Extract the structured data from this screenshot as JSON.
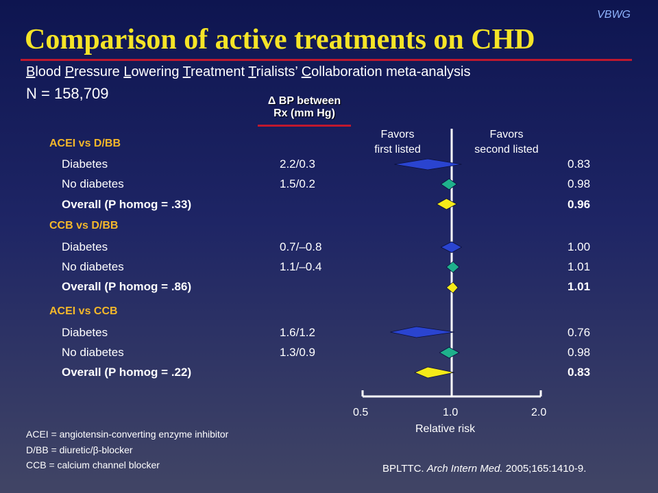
{
  "brand": "VBWG",
  "title": "Comparison of active treatments on CHD",
  "subtitle": [
    {
      "initial": "B",
      "rest": "lood "
    },
    {
      "initial": "P",
      "rest": "ressure "
    },
    {
      "initial": "L",
      "rest": "owering "
    },
    {
      "initial": "T",
      "rest": "reatment "
    },
    {
      "initial": "T",
      "rest": "rialists’ "
    },
    {
      "initial": "C",
      "rest": "ollaboration meta-analysis"
    }
  ],
  "sample_size": "N = 158,709",
  "column_header": {
    "line1": "Δ BP between",
    "line2": "Rx (mm Hg)"
  },
  "favors_left": {
    "line1": "Favors",
    "line2": "first listed"
  },
  "favors_right": {
    "line1": "Favors",
    "line2": "second listed"
  },
  "colors": {
    "diabetes": "#2a44d0",
    "no_diabetes": "#1fb08c",
    "overall": "#f5ea18",
    "group_label": "#f5b82a",
    "title": "#f5e427"
  },
  "chart_data": {
    "type": "forest",
    "xlabel": "Relative risk",
    "x_ticks": [
      "0.5",
      "1.0",
      "2.0"
    ],
    "x_tick_values": [
      0.5,
      1.0,
      2.0
    ],
    "reference_line": 1.0,
    "log_scale": true,
    "groups": [
      {
        "label": "ACEI vs D/BB",
        "rows": [
          {
            "label": "Diabetes",
            "bp": "2.2/0.3",
            "rr": "0.83",
            "value": 0.83,
            "ci": [
              0.64,
              1.08
            ],
            "kind": "diabetes",
            "bold": false
          },
          {
            "label": "No diabetes",
            "bp": "1.5/0.2",
            "rr": "0.98",
            "value": 0.98,
            "ci": [
              0.92,
              1.04
            ],
            "kind": "no_diabetes",
            "bold": false
          },
          {
            "label": "Overall (P homog = .33)",
            "bp": "",
            "rr": "0.96",
            "value": 0.96,
            "ci": [
              0.89,
              1.04
            ],
            "kind": "overall",
            "bold": true
          }
        ]
      },
      {
        "label": "CCB vs D/BB",
        "rows": [
          {
            "label": "Diabetes",
            "bp": "0.7/–0.8",
            "rr": "1.00",
            "value": 1.0,
            "ci": [
              0.92,
              1.08
            ],
            "kind": "diabetes",
            "bold": false
          },
          {
            "label": "No diabetes",
            "bp": "1.1/–0.4",
            "rr": "1.01",
            "value": 1.01,
            "ci": [
              0.96,
              1.06
            ],
            "kind": "no_diabetes",
            "bold": false
          },
          {
            "label": "Overall (P homog = .86)",
            "bp": "",
            "rr": "1.01",
            "value": 1.01,
            "ci": [
              0.96,
              1.05
            ],
            "kind": "overall",
            "bold": true
          }
        ]
      },
      {
        "label": "ACEI vs CCB",
        "rows": [
          {
            "label": "Diabetes",
            "bp": "1.6/1.2",
            "rr": "0.76",
            "value": 0.76,
            "ci": [
              0.62,
              1.02
            ],
            "kind": "diabetes",
            "bold": false
          },
          {
            "label": "No diabetes",
            "bp": "1.3/0.9",
            "rr": "0.98",
            "value": 0.98,
            "ci": [
              0.91,
              1.06
            ],
            "kind": "no_diabetes",
            "bold": false
          },
          {
            "label": "Overall (P homog = .22)",
            "bp": "",
            "rr": "0.83",
            "value": 0.83,
            "ci": [
              0.75,
              1.02
            ],
            "kind": "overall",
            "bold": true
          }
        ]
      }
    ]
  },
  "legend": [
    {
      "text": "ACEI = angiotensin-converting enzyme inhibitor"
    },
    {
      "pre": "D/BB = diuretic/",
      "symbol": "β",
      "post": "-blocker"
    },
    {
      "text": "CCB = calcium channel blocker"
    }
  ],
  "citation": {
    "pre": "BPLTTC. ",
    "journal": "Arch Intern Med.",
    "post": " 2005;165:1410-9."
  }
}
